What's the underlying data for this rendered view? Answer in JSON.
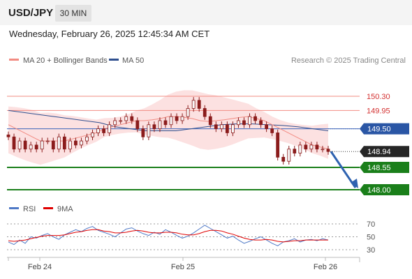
{
  "header": {
    "symbol": "USD/JPY",
    "timeframe": "30 MIN",
    "datetime": "Wednesday, February 26, 2025 12:45:34 AM CET"
  },
  "chart_data": {
    "type": "line",
    "legend": [
      {
        "label": "MA 20 + Bollinger Bands",
        "color": "#f28b82"
      },
      {
        "label": "MA 50",
        "color": "#2f4f8f"
      }
    ],
    "credit": "Research © 2025 Trading Central",
    "x_ticks": [
      "Feb 24",
      "Feb 25",
      "Feb 26"
    ],
    "price_levels": [
      {
        "value": 150.3,
        "label": "150.30",
        "kind": "resistance"
      },
      {
        "value": 149.95,
        "label": "149.95",
        "kind": "resistance"
      },
      {
        "value": 149.5,
        "label": "149.50",
        "kind": "pivot"
      },
      {
        "value": 148.94,
        "label": "148.94",
        "kind": "last"
      },
      {
        "value": 148.55,
        "label": "148.55",
        "kind": "support"
      },
      {
        "value": 148.0,
        "label": "148.00",
        "kind": "target"
      }
    ],
    "close_series": [
      149.3,
      149.0,
      149.2,
      149.0,
      149.1,
      149.0,
      149.2,
      149.2,
      149.0,
      149.3,
      149.0,
      149.2,
      149.1,
      149.2,
      149.3,
      149.4,
      149.5,
      149.4,
      149.6,
      149.7,
      149.7,
      149.8,
      149.7,
      149.5,
      149.3,
      149.6,
      149.5,
      149.7,
      149.6,
      149.8,
      149.7,
      149.8,
      150.0,
      150.2,
      150.0,
      149.8,
      149.6,
      149.5,
      149.6,
      149.4,
      149.6,
      149.7,
      149.6,
      149.8,
      149.7,
      149.6,
      149.5,
      149.4,
      148.8,
      148.7,
      149.0,
      148.9,
      149.1,
      149.0,
      149.1,
      149.0,
      149.0,
      148.94
    ],
    "ma20": [
      149.6,
      149.5,
      149.4,
      149.3,
      149.2,
      149.2,
      149.2,
      149.2,
      149.25,
      149.3,
      149.35,
      149.4,
      149.5,
      149.55,
      149.6,
      149.65,
      149.7,
      149.7,
      149.72,
      149.75,
      149.8,
      149.8,
      149.78,
      149.75,
      149.7,
      149.68,
      149.7,
      149.72,
      149.75,
      149.78,
      149.8,
      149.75,
      149.7,
      149.6,
      149.5,
      149.4,
      149.3,
      149.2,
      149.1,
      149.05,
      149.0
    ],
    "ma50": [
      149.95,
      149.9,
      149.85,
      149.8,
      149.75,
      149.7,
      149.65,
      149.55,
      149.5,
      149.45,
      149.45,
      149.45,
      149.5,
      149.55,
      149.6,
      149.62,
      149.62,
      149.6,
      149.58,
      149.55,
      149.5,
      149.45
    ],
    "y_axis_labels_shown": [
      "150.30",
      "149.95",
      "149.50",
      "148.94",
      "148.55",
      "148.00"
    ],
    "rsi_panel": {
      "legend": [
        {
          "label": "RSI",
          "color": "#4f79c6"
        },
        {
          "label": "9MA",
          "color": "#e00000"
        }
      ],
      "levels": [
        70,
        50,
        30
      ],
      "rsi_series": [
        42,
        38,
        45,
        40,
        50,
        48,
        52,
        55,
        50,
        46,
        53,
        57,
        61,
        58,
        63,
        66,
        60,
        57,
        54,
        50,
        56,
        62,
        64,
        59,
        55,
        52,
        57,
        54,
        61,
        57,
        52,
        48,
        51,
        56,
        62,
        68,
        63,
        58,
        53,
        48,
        51,
        45,
        40,
        43,
        47,
        50,
        45,
        40,
        36,
        42,
        44,
        47,
        42,
        45,
        46,
        44,
        47,
        45
      ],
      "ma_series": [
        44,
        43,
        44,
        45,
        47,
        49,
        51,
        52,
        52,
        52,
        53,
        55,
        57,
        58,
        60,
        61,
        61,
        59,
        58,
        56,
        56,
        57,
        59,
        60,
        59,
        57,
        56,
        56,
        57,
        57,
        56,
        54,
        53,
        53,
        55,
        58,
        60,
        60,
        59,
        56,
        54,
        51,
        48,
        46,
        45,
        45,
        46,
        45,
        43,
        42,
        43,
        44,
        44,
        45,
        45,
        45,
        45,
        45
      ]
    },
    "grid": false
  }
}
